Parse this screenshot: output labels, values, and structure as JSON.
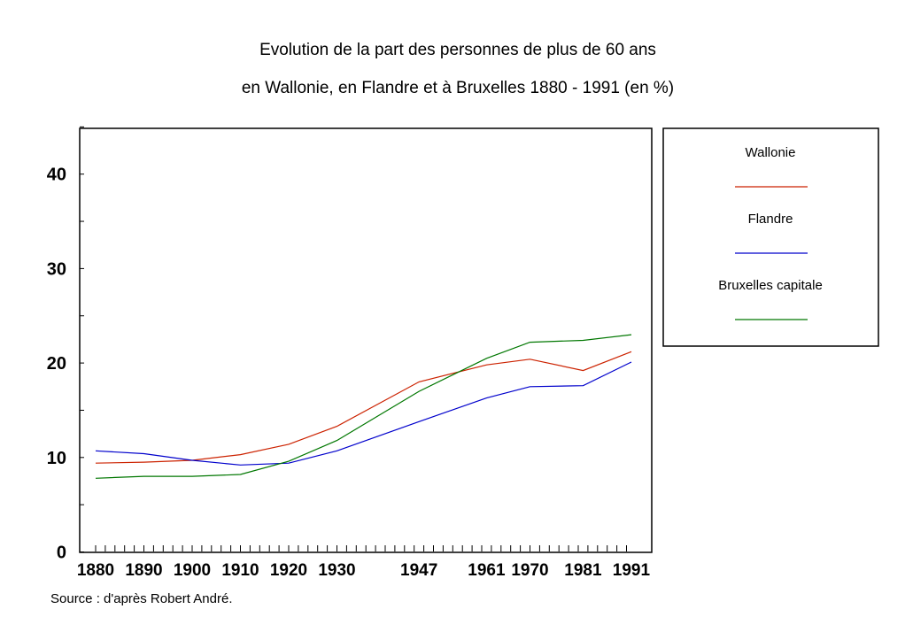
{
  "title_line1": "Evolution de la part des personnes de plus de 60 ans",
  "title_line2": "en Wallonie, en Flandre et à Bruxelles 1880 - 1991 (en %)",
  "source": "Source : d'après Robert André.",
  "chart_data": {
    "type": "line",
    "title": "Evolution de la part des personnes de plus de 60 ans en Wallonie, en Flandre et à Bruxelles 1880 - 1991 (en %)",
    "xlabel": "",
    "ylabel": "",
    "x": [
      1880,
      1890,
      1900,
      1910,
      1920,
      1930,
      1947,
      1961,
      1970,
      1981,
      1991
    ],
    "x_tick_labels": [
      "1880",
      "1890",
      "1900",
      "1910",
      "1920",
      "1930",
      "1947",
      "1961",
      "1970",
      "1981",
      "1991"
    ],
    "ylim": [
      0,
      45
    ],
    "y_ticks": [
      0,
      10,
      20,
      30,
      40
    ],
    "y_tick_labels": [
      "0",
      "10",
      "20",
      "30",
      "40"
    ],
    "legend_position": "right",
    "grid": false,
    "series": [
      {
        "name": "Wallonie",
        "color": "#cc2200",
        "values": [
          9.4,
          9.5,
          9.7,
          10.3,
          11.4,
          13.3,
          18.0,
          19.8,
          20.4,
          19.2,
          21.2
        ]
      },
      {
        "name": "Flandre",
        "color": "#0000cc",
        "values": [
          10.7,
          10.4,
          9.7,
          9.2,
          9.4,
          10.7,
          13.8,
          16.3,
          17.5,
          17.6,
          20.1
        ]
      },
      {
        "name": "Bruxelles capitale",
        "color": "#007700",
        "values": [
          7.8,
          8.0,
          8.0,
          8.2,
          9.6,
          11.8,
          17.0,
          20.5,
          22.2,
          22.4,
          23.0
        ]
      }
    ]
  }
}
